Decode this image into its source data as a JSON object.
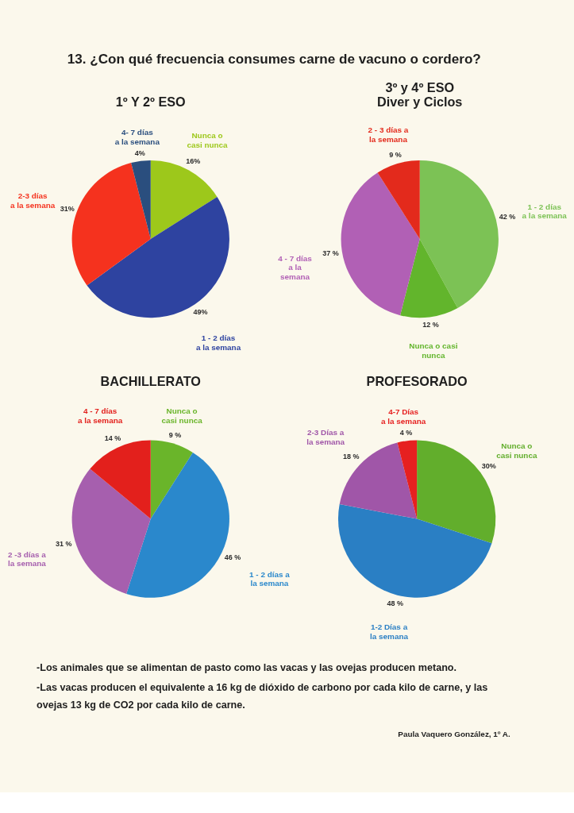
{
  "chart_data": [
    {
      "type": "other",
      "title": "13. ¿Con qué frecuencia consumes carne de vacuno o cordero?"
    },
    {
      "type": "pie",
      "title": "1º Y 2º ESO",
      "categories": [
        "Nunca o\ncasi nunca",
        "1 - 2 días\na la semana",
        "2-3 días\na la semana",
        "4- 7 días\na la semana"
      ],
      "values": [
        16,
        49,
        31,
        4
      ],
      "value_labels": [
        "16%",
        "49%",
        "31%",
        "4%"
      ],
      "colors": [
        "#9dc81b",
        "#2e43a0",
        "#f5321e",
        "#2a4e7e"
      ]
    },
    {
      "type": "pie",
      "title": "3º y 4º ESO\nDiver y Ciclos",
      "categories": [
        "1 - 2 días\na la semana",
        "Nunca o casi\nnunca",
        "4 - 7 días\na la\nsemana",
        "2 - 3 días a\nla semana"
      ],
      "values": [
        42,
        12,
        37,
        9
      ],
      "value_labels": [
        "42 %",
        "12 %",
        "37 %",
        "9 %"
      ],
      "colors": [
        "#7cc255",
        "#62b52c",
        "#b160b5",
        "#e32a1c"
      ]
    },
    {
      "type": "pie",
      "title": "BACHILLERATO",
      "categories": [
        "Nunca o\ncasi nunca",
        "1 - 2 días a\nla semana",
        "2 -3 días a\nla semana",
        "4 - 7 días\na la semana"
      ],
      "values": [
        9,
        46,
        31,
        14
      ],
      "value_labels": [
        "9 %",
        "46 %",
        "31 %",
        "14 %"
      ],
      "colors": [
        "#6ab52a",
        "#2a88cc",
        "#a65fae",
        "#e3201c"
      ]
    },
    {
      "type": "pie",
      "title": "PROFESORADO",
      "categories": [
        "Nunca o\ncasi nunca",
        "1-2 Días a\nla semana",
        "2-3 Días a\nla semana",
        "4-7 Días\na la semana"
      ],
      "values": [
        30,
        48,
        18,
        4
      ],
      "value_labels": [
        "30%",
        "48 %",
        "18 %",
        "4 %"
      ],
      "colors": [
        "#62ae2c",
        "#2a7fc4",
        "#a056a8",
        "#e62020"
      ]
    },
    {
      "type": "other",
      "annotations": [
        "-Los animales que se alimentan de pasto como las vacas y las ovejas producen metano.",
        "-Las vacas producen el equivalente a 16 kg de dióxido de carbono por cada kilo de carne, y las ovejas 13 kg de CO2 por cada kilo de carne.",
        "Paula Vaquero González, 1º A."
      ]
    }
  ]
}
